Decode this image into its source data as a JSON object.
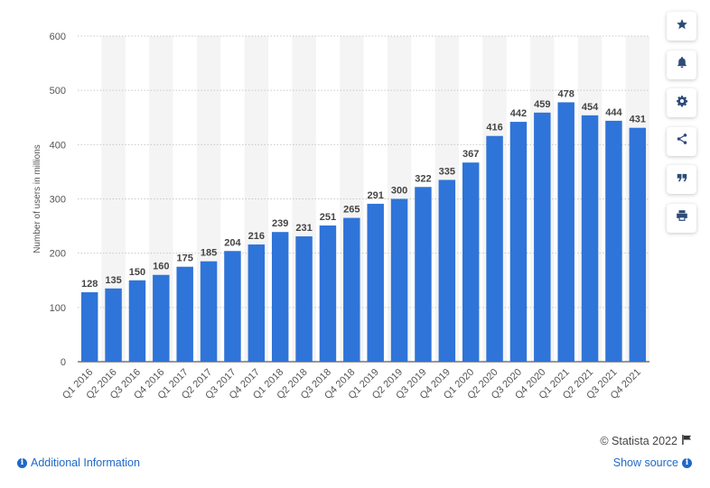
{
  "chart_data": {
    "type": "bar",
    "title": "",
    "xlabel": "",
    "ylabel": "Number of users in millions",
    "ylim": [
      0,
      600
    ],
    "yticks": [
      0,
      100,
      200,
      300,
      400,
      500,
      600
    ],
    "grid": true,
    "bar_color": "#2f74d8",
    "categories": [
      "Q1 2016",
      "Q2 2016",
      "Q3 2016",
      "Q4 2016",
      "Q1 2017",
      "Q2 2017",
      "Q3 2017",
      "Q4 2017",
      "Q1 2018",
      "Q2 2018",
      "Q3 2018",
      "Q4 2018",
      "Q1 2019",
      "Q2 2019",
      "Q3 2019",
      "Q4 2019",
      "Q1 2020",
      "Q2 2020",
      "Q3 2020",
      "Q4 2020",
      "Q1 2021",
      "Q2 2021",
      "Q3 2021",
      "Q4 2021"
    ],
    "values": [
      128,
      135,
      150,
      160,
      175,
      185,
      204,
      216,
      239,
      231,
      251,
      265,
      291,
      300,
      322,
      335,
      367,
      416,
      442,
      459,
      478,
      454,
      444,
      431
    ]
  },
  "toolbar": [
    {
      "icon": "star-icon",
      "name": "bookmark-button"
    },
    {
      "icon": "bell-icon",
      "name": "alert-button"
    },
    {
      "icon": "gear-icon",
      "name": "settings-button"
    },
    {
      "icon": "share-icon",
      "name": "share-button"
    },
    {
      "icon": "quote-icon",
      "name": "cite-button"
    },
    {
      "icon": "print-icon",
      "name": "print-button"
    }
  ],
  "footer": {
    "credit": "© Statista 2022",
    "additional_info": "Additional Information",
    "show_source": "Show source"
  }
}
